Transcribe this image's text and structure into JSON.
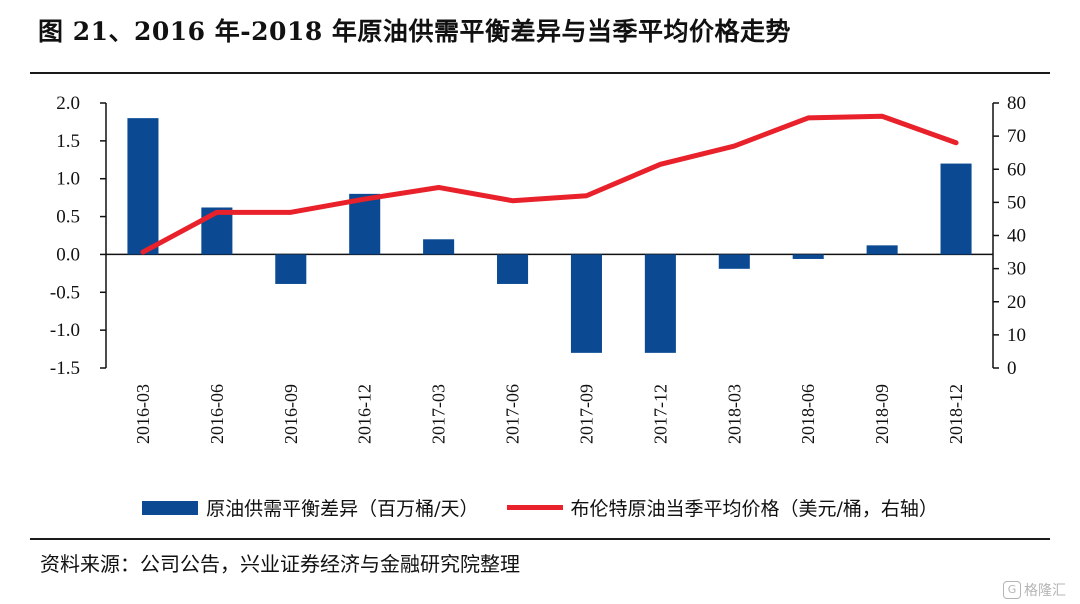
{
  "title": "图 21、2016 年-2018 年原油供需平衡差异与当季平均价格走势",
  "source": "资料来源：公司公告，兴业证券经济与金融研究院整理",
  "watermark": "格隆汇",
  "colors": {
    "bar": "#0b4a93",
    "line": "#e8212b"
  },
  "chart_data": {
    "type": "bar+line",
    "categories": [
      "2016-03",
      "2016-06",
      "2016-09",
      "2016-12",
      "2017-03",
      "2017-06",
      "2017-09",
      "2017-12",
      "2018-03",
      "2018-06",
      "2018-09",
      "2018-12"
    ],
    "series": [
      {
        "name": "原油供需平衡差异（百万桶/天）",
        "type": "bar",
        "axis": "left",
        "values": [
          1.8,
          0.62,
          -0.39,
          0.8,
          0.2,
          -0.39,
          -1.3,
          -1.3,
          -0.19,
          -0.06,
          0.12,
          1.2
        ]
      },
      {
        "name": "布伦特原油当季平均价格（美元/桶，右轴）",
        "type": "line",
        "axis": "right",
        "values": [
          35,
          47,
          47,
          51,
          54.5,
          50.5,
          52,
          61.5,
          67,
          75.5,
          76,
          68
        ]
      }
    ],
    "yleft": {
      "min": -1.5,
      "max": 2.0,
      "ticks": [
        "-1.5",
        "-1.0",
        "-0.5",
        "0.0",
        "0.5",
        "1.0",
        "1.5",
        "2.0"
      ]
    },
    "yright": {
      "min": 0,
      "max": 80,
      "ticks": [
        "0",
        "10",
        "20",
        "30",
        "40",
        "50",
        "60",
        "70",
        "80"
      ]
    },
    "legend_position": "bottom"
  }
}
